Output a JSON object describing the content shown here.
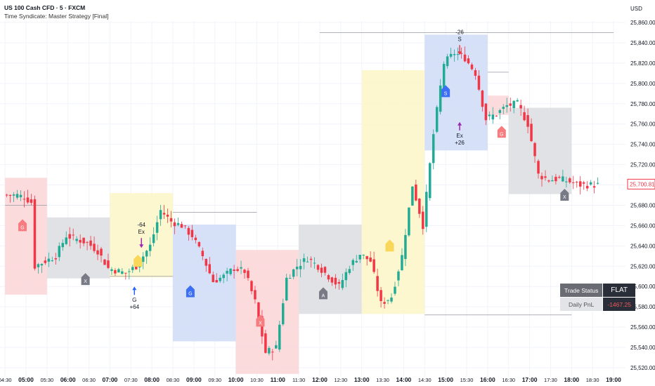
{
  "header": {
    "title": "US 100 Cash CFD · 5 · FXCM",
    "subtitle": "Time Syndicate: Master Strategy [Final]",
    "currency": "USD"
  },
  "colors": {
    "up": "#22ab94",
    "down": "#f23645",
    "session_red": "#fbd5d7",
    "session_gray": "#dcdde0",
    "session_yellow": "#fdf6c8",
    "session_blue": "#cfdcf7",
    "buy_arrow": "#2962ff",
    "sell_arrow": "#f23645",
    "exit_arrow": "#9c27b0"
  },
  "trade_table": {
    "status_label": "Trade Status",
    "status_value": "FLAT",
    "pnl_label": "Daily PnL",
    "pnl_value": "-1467.25"
  },
  "chart_data": {
    "type": "candlestick",
    "title": "US 100 Cash CFD · 5 · FXCM",
    "ylim": [
      25510,
      25870
    ],
    "y_ticks": [
      25520,
      25540,
      25560,
      25580,
      25600,
      25620,
      25640,
      25660,
      25680,
      25700,
      25720,
      25740,
      25760,
      25780,
      25800,
      25820,
      25840,
      25860
    ],
    "y_tick_labels": [
      "25,520.00",
      "25,540.00",
      "25,560.00",
      "25,580.00",
      "25,600.00",
      "25,620.00",
      "25,640.00",
      "25,660.00",
      "25,680.00",
      "25,700.00",
      "25,720.00",
      "25,740.00",
      "25,760.00",
      "25,780.00",
      "25,800.00",
      "25,820.00",
      "25,840.00",
      "25,860.00"
    ],
    "last_price_label": "25,700.81",
    "last_price": 25700.81,
    "x_labels": [
      "04:30",
      "05:00",
      "05:30",
      "06:00",
      "06:30",
      "07:00",
      "07:30",
      "08:00",
      "08:30",
      "09:00",
      "09:30",
      "10:00",
      "10:30",
      "11:00",
      "11:30",
      "12:00",
      "12:30",
      "13:00",
      "13:30",
      "14:00",
      "14:30",
      "15:00",
      "15:30",
      "16:00",
      "16:30",
      "17:00",
      "17:30",
      "18:00",
      "18:30",
      "19:00"
    ],
    "bold_x_labels": [
      "05:00",
      "06:00",
      "07:00",
      "08:00",
      "09:00",
      "10:00",
      "11:00",
      "12:00",
      "13:00",
      "14:00",
      "15:00",
      "16:00",
      "17:00",
      "18:00",
      "19:00"
    ],
    "grid": true,
    "sessions": [
      {
        "start": "04:30",
        "end": "05:30",
        "color": "red",
        "top": 25707,
        "bottom": 25592
      },
      {
        "start": "05:30",
        "end": "07:00",
        "color": "gray",
        "top": 25668,
        "bottom": 25608
      },
      {
        "start": "07:00",
        "end": "08:30",
        "color": "yellow",
        "top": 25692,
        "bottom": 25609
      },
      {
        "start": "08:30",
        "end": "10:00",
        "color": "blue",
        "top": 25661,
        "bottom": 25546
      },
      {
        "start": "10:00",
        "end": "11:30",
        "color": "red",
        "top": 25636,
        "bottom": 25514
      },
      {
        "start": "11:30",
        "end": "13:00",
        "color": "gray",
        "top": 25661,
        "bottom": 25573
      },
      {
        "start": "13:00",
        "end": "14:30",
        "color": "yellow",
        "top": 25813,
        "bottom": 25573
      },
      {
        "start": "14:30",
        "end": "16:00",
        "color": "blue",
        "top": 25848,
        "bottom": 25734
      },
      {
        "start": "16:00",
        "end": "16:30",
        "color": "red",
        "top": 25788,
        "bottom": 25769
      },
      {
        "start": "16:30",
        "end": "18:00",
        "color": "gray",
        "top": 25776,
        "bottom": 25691
      }
    ],
    "markers": [
      {
        "time": "04:55",
        "price": 25660,
        "label": "G",
        "color": "red"
      },
      {
        "time": "06:25",
        "price": 25607,
        "label": "X",
        "color": "gray"
      },
      {
        "time": "07:40",
        "price": 25625,
        "label": "",
        "color": "yellow"
      },
      {
        "time": "08:55",
        "price": 25595,
        "label": "G",
        "color": "blue"
      },
      {
        "time": "10:35",
        "price": 25566,
        "label": "X",
        "color": "red"
      },
      {
        "time": "12:05",
        "price": 25593,
        "label": "A",
        "color": "gray"
      },
      {
        "time": "13:40",
        "price": 25640,
        "label": "",
        "color": "yellow"
      },
      {
        "time": "15:00",
        "price": 25792,
        "label": "S",
        "color": "blue"
      },
      {
        "time": "16:20",
        "price": 25752,
        "label": "G",
        "color": "red"
      },
      {
        "time": "17:50",
        "price": 25690,
        "label": "X",
        "color": "gray"
      }
    ],
    "trade_annotations": [
      {
        "time": "07:35",
        "price": 25600,
        "arrow": "up",
        "lines": [
          "G",
          "+64"
        ],
        "color": "blue"
      },
      {
        "time": "07:45",
        "price": 25638,
        "arrow": "down",
        "lines": [
          "-64",
          "Ex"
        ],
        "color": "purple"
      },
      {
        "time": "15:20",
        "price": 25828,
        "arrow": "down",
        "lines": [
          "-26",
          "S"
        ],
        "color": "red"
      },
      {
        "time": "15:20",
        "price": 25762,
        "arrow": "up",
        "lines": [
          "Ex",
          "+26"
        ],
        "color": "purple"
      }
    ]
  }
}
